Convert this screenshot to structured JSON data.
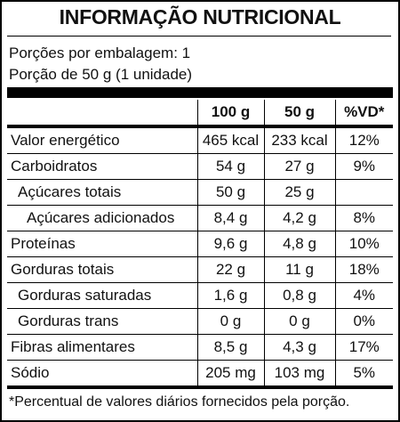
{
  "header": {
    "title": "INFORMAÇÃO NUTRICIONAL",
    "servings": "Porções por embalagem: 1",
    "portion": "Porção de 50 g (1 unidade)"
  },
  "table": {
    "columns": [
      "100 g",
      "50 g",
      "%VD*"
    ],
    "rows": [
      [
        "Valor energético",
        "465 kcal",
        "233 kcal",
        "12%"
      ],
      [
        "Carboidratos",
        "54 g",
        "27 g",
        "9%"
      ],
      [
        "Açúcares totais",
        "50 g",
        "25 g"
      ],
      [
        "Açúcares adicionados",
        "8,4 g",
        "4,2 g",
        "8%"
      ],
      [
        "Proteínas",
        "9,6 g",
        "4,8 g",
        "10%"
      ],
      [
        "Gorduras totais",
        "22 g",
        "11 g",
        "18%"
      ],
      [
        "Gorduras saturadas",
        "1,6 g",
        "0,8 g",
        "4%"
      ],
      [
        "Gorduras trans",
        "0 g",
        "0 g",
        "0%"
      ],
      [
        "Fibras alimentares",
        "8,5 g",
        "4,3 g",
        "17%"
      ],
      [
        "Sódio",
        "205 mg",
        "103 mg",
        "5%"
      ]
    ]
  },
  "footer": "*Percentual de valores diários fornecidos pela porção."
}
